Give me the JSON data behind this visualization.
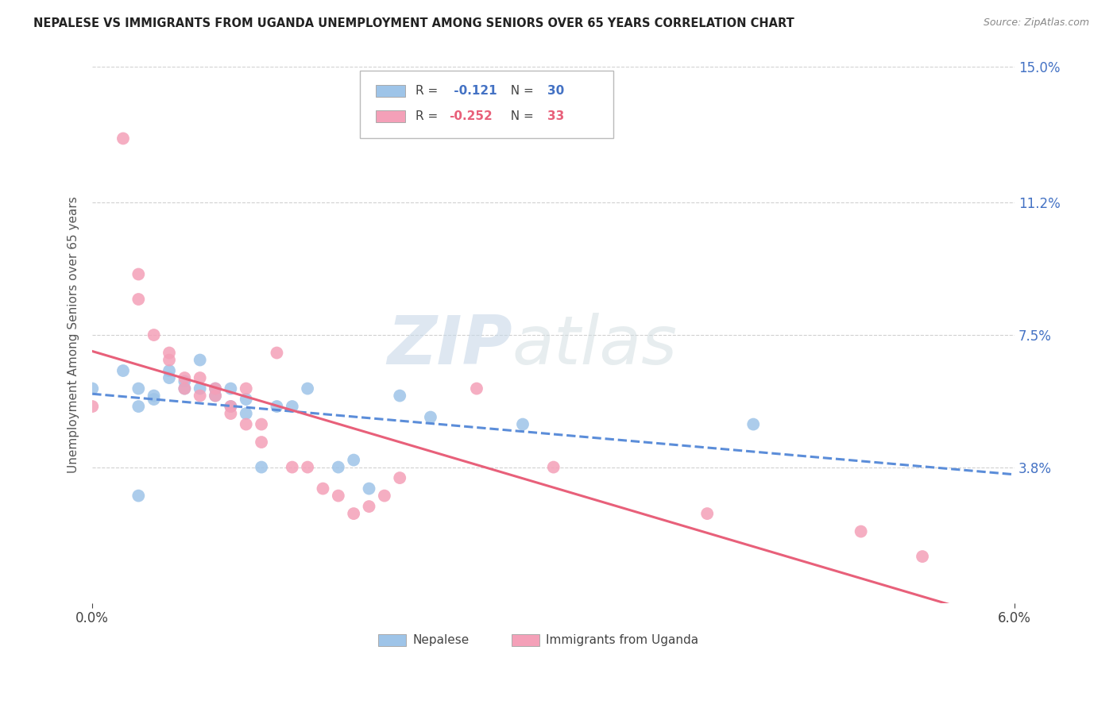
{
  "title": "NEPALESE VS IMMIGRANTS FROM UGANDA UNEMPLOYMENT AMONG SENIORS OVER 65 YEARS CORRELATION CHART",
  "source": "Source: ZipAtlas.com",
  "ylabel_label": "Unemployment Among Seniors over 65 years",
  "xlim": [
    0.0,
    0.06
  ],
  "ylim": [
    0.0,
    0.15
  ],
  "ytick_positions": [
    0.038,
    0.075,
    0.112,
    0.15
  ],
  "ytick_labels": [
    "3.8%",
    "7.5%",
    "11.2%",
    "15.0%"
  ],
  "xtick_positions": [
    0.0,
    0.06
  ],
  "xtick_labels": [
    "0.0%",
    "6.0%"
  ],
  "nepalese_x": [
    0.0,
    0.002,
    0.003,
    0.003,
    0.004,
    0.004,
    0.005,
    0.005,
    0.006,
    0.006,
    0.007,
    0.007,
    0.008,
    0.008,
    0.009,
    0.009,
    0.01,
    0.01,
    0.011,
    0.012,
    0.013,
    0.014,
    0.016,
    0.017,
    0.018,
    0.02,
    0.022,
    0.028,
    0.043,
    0.003
  ],
  "nepalese_y": [
    0.06,
    0.065,
    0.055,
    0.06,
    0.057,
    0.058,
    0.063,
    0.065,
    0.06,
    0.062,
    0.06,
    0.068,
    0.058,
    0.06,
    0.055,
    0.06,
    0.053,
    0.057,
    0.038,
    0.055,
    0.055,
    0.06,
    0.038,
    0.04,
    0.032,
    0.058,
    0.052,
    0.05,
    0.05,
    0.03
  ],
  "uganda_x": [
    0.0,
    0.002,
    0.003,
    0.003,
    0.004,
    0.005,
    0.005,
    0.006,
    0.006,
    0.007,
    0.007,
    0.008,
    0.008,
    0.009,
    0.009,
    0.01,
    0.01,
    0.011,
    0.011,
    0.012,
    0.013,
    0.014,
    0.015,
    0.016,
    0.017,
    0.018,
    0.019,
    0.02,
    0.025,
    0.03,
    0.04,
    0.05,
    0.054
  ],
  "uganda_y": [
    0.055,
    0.13,
    0.085,
    0.092,
    0.075,
    0.068,
    0.07,
    0.063,
    0.06,
    0.058,
    0.063,
    0.058,
    0.06,
    0.055,
    0.053,
    0.06,
    0.05,
    0.05,
    0.045,
    0.07,
    0.038,
    0.038,
    0.032,
    0.03,
    0.025,
    0.027,
    0.03,
    0.035,
    0.06,
    0.038,
    0.025,
    0.02,
    0.013
  ],
  "blue_color": "#9ec4e8",
  "pink_color": "#f4a0b8",
  "blue_line_color": "#5b8dd9",
  "pink_line_color": "#e8607a",
  "watermark_zip": "ZIP",
  "watermark_atlas": "atlas",
  "background_color": "#ffffff",
  "grid_color": "#cccccc",
  "r_nep": -0.121,
  "n_nep": 30,
  "r_uga": -0.252,
  "n_uga": 33
}
